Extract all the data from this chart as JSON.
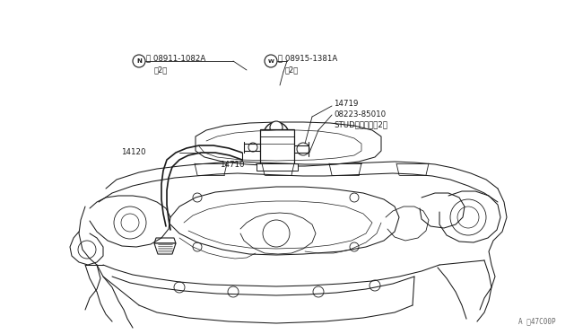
{
  "bg_color": "#ffffff",
  "line_color": "#1a1a1a",
  "text_color": "#1a1a1a",
  "fig_width": 6.4,
  "fig_height": 3.72,
  "dpi": 100,
  "watermark": "A ‧47C00P",
  "label_N1": "Ⓝ 08911-1082A",
  "label_N1_sub": "（2）",
  "label_N2": "Ⓜ 08915-1381A",
  "label_N2_sub": "（2）",
  "label_14719": "14719",
  "label_stud": "08223-85010",
  "label_stud2": "STUDスタッド（2）",
  "label_14120": "14120",
  "label_14710": "14710"
}
